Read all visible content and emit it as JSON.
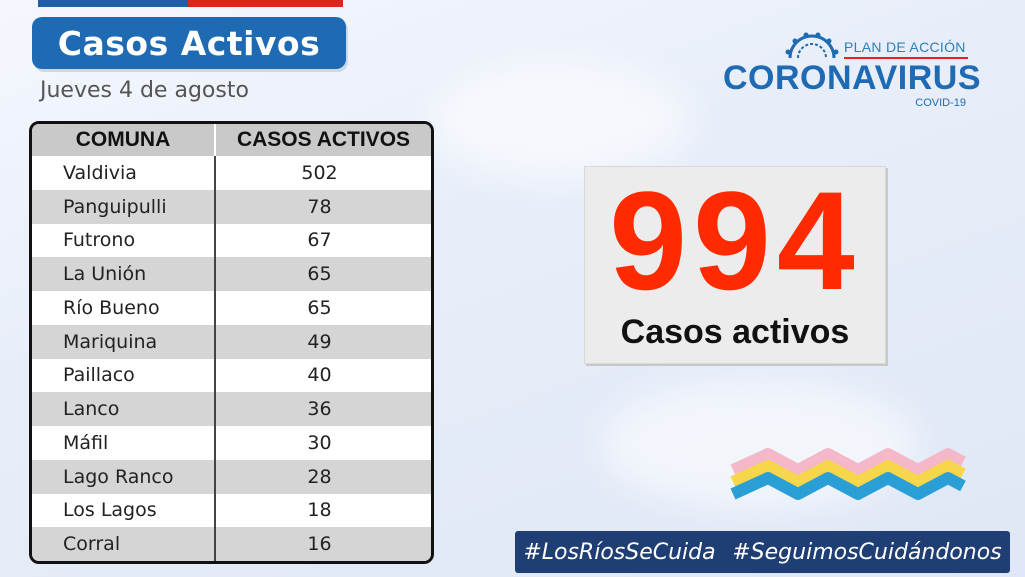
{
  "title": "Casos Activos",
  "date": "Jueves 4 de agosto",
  "table": {
    "headers": [
      "COMUNA",
      "CASOS ACTIVOS"
    ],
    "rows": [
      {
        "comuna": "Valdivia",
        "casos": "502"
      },
      {
        "comuna": "Panguipulli",
        "casos": "78"
      },
      {
        "comuna": "Futrono",
        "casos": "67"
      },
      {
        "comuna": "La Unión",
        "casos": "65"
      },
      {
        "comuna": "Río Bueno",
        "casos": "65"
      },
      {
        "comuna": "Mariquina",
        "casos": "49"
      },
      {
        "comuna": "Paillaco",
        "casos": "40"
      },
      {
        "comuna": "Lanco",
        "casos": "36"
      },
      {
        "comuna": "Máfil",
        "casos": "30"
      },
      {
        "comuna": "Lago Ranco",
        "casos": "28"
      },
      {
        "comuna": "Los Lagos",
        "casos": "18"
      },
      {
        "comuna": "Corral",
        "casos": "16"
      }
    ]
  },
  "logo": {
    "plan": "PLAN DE ACCIÓN",
    "main": "CORONAVIRUS",
    "sub": "COVID-19"
  },
  "total": {
    "value": "994",
    "label": "Casos activos"
  },
  "hashtags": [
    "#LosRíosSeCuida",
    "#SeguimosCuidándonos"
  ],
  "colors": {
    "title_bg": "#1f6bb3",
    "total_number": "#ff2a00",
    "hashtag_bg": "#1f3e73",
    "wave_pink": "#f4b8c8",
    "wave_yellow": "#f6d64a",
    "wave_blue": "#2a9fd6"
  }
}
